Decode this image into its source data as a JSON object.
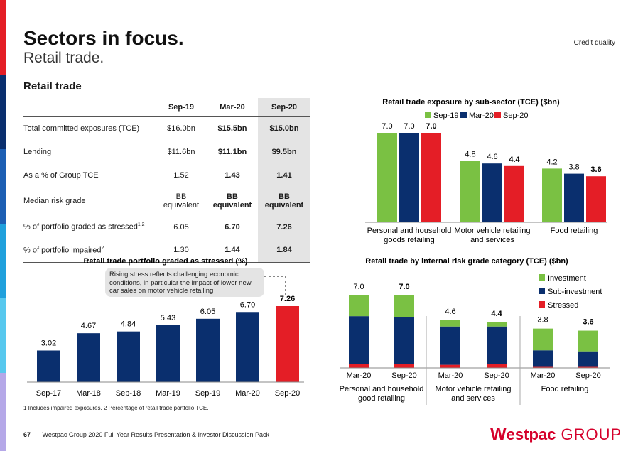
{
  "header": {
    "title": "Sectors in focus.",
    "subtitle": "Retail trade.",
    "tag": "Credit quality"
  },
  "section_title": "Retail trade",
  "table": {
    "columns": [
      "Sep-19",
      "Mar-20",
      "Sep-20"
    ],
    "rows": [
      {
        "label": "Total committed exposures (TCE)",
        "values": [
          "$16.0bn",
          "$15.5bn",
          "$15.0bn"
        ]
      },
      {
        "label": "Lending",
        "values": [
          "$11.6bn",
          "$11.1bn",
          "$9.5bn"
        ]
      },
      {
        "label": "As a % of Group TCE",
        "values": [
          "1.52",
          "1.43",
          "1.41"
        ]
      },
      {
        "label": "Median risk grade",
        "values": [
          "BB",
          "BB",
          "BB"
        ],
        "sub": "equivalent"
      },
      {
        "label": "% of portfolio graded as stressed",
        "sup": "1,2",
        "values": [
          "6.05",
          "6.70",
          "7.26"
        ]
      },
      {
        "label": "% of portfolio impaired",
        "sup": "2",
        "values": [
          "1.30",
          "1.44",
          "1.84"
        ]
      }
    ]
  },
  "colors": {
    "green": "#7ac143",
    "navy": "#0a2f6e",
    "red": "#e41e26"
  },
  "note": "Rising stress reflects challenging economic conditions, in particular the impact of lower new car sales on motor vehicle retailing",
  "footnote": "1 Includes impaired exposures.  2 Percentage of retail trade portfolio TCE.",
  "footer": {
    "page": "67",
    "text": "Westpac Group 2020 Full Year Results Presentation & Investor Discussion Pack"
  },
  "logo": {
    "mark": "W",
    "brand": "estpac",
    "group": " GROUP"
  },
  "chart_data": [
    {
      "type": "bar",
      "title": "Retail trade exposure by sub-sector (TCE) ($bn)",
      "categories": [
        "Personal and household goods retailing",
        "Motor vehicle retailing and services",
        "Food retailing"
      ],
      "category_lines": [
        [
          "Personal and household",
          "goods retailing"
        ],
        [
          "Motor vehicle retailing",
          "and services"
        ],
        [
          "Food retailing"
        ]
      ],
      "series": [
        {
          "name": "Sep-19",
          "values": [
            7.0,
            4.8,
            4.2
          ],
          "labels": [
            "7.0",
            "4.8",
            "4.2"
          ]
        },
        {
          "name": "Mar-20",
          "values": [
            7.0,
            4.6,
            3.8
          ],
          "labels": [
            "7.0",
            "4.6",
            "3.8"
          ]
        },
        {
          "name": "Sep-20",
          "values": [
            7.0,
            4.4,
            3.6
          ],
          "labels": [
            "7.0",
            "4.4",
            "3.6"
          ]
        }
      ],
      "ylim": [
        0,
        7.0
      ],
      "legend": "top"
    },
    {
      "type": "bar",
      "title": "Retail trade portfolio graded as stressed (%)",
      "categories": [
        "Sep-17",
        "Mar-18",
        "Sep-18",
        "Mar-19",
        "Sep-19",
        "Mar-20",
        "Sep-20"
      ],
      "values": [
        3.02,
        4.67,
        4.84,
        5.43,
        6.05,
        6.7,
        7.26
      ],
      "labels": [
        "3.02",
        "4.67",
        "4.84",
        "5.43",
        "6.05",
        "6.70",
        "7.26"
      ],
      "ylim": [
        0,
        7.26
      ]
    },
    {
      "type": "bar",
      "stacked": true,
      "title": "Retail trade by internal risk grade category (TCE) ($bn)",
      "x": [
        "Mar-20",
        "Sep-20",
        "Mar-20",
        "Sep-20",
        "Mar-20",
        "Sep-20"
      ],
      "groups": [
        [
          "Personal and household",
          "good retailing"
        ],
        [
          "Motor vehicle retailing",
          "and services"
        ],
        [
          "Food retailing"
        ]
      ],
      "totals": [
        "7.0",
        "7.0",
        "4.6",
        "4.4",
        "3.8",
        "3.6"
      ],
      "series": [
        {
          "name": "Stressed",
          "values": [
            0.4,
            0.4,
            0.3,
            0.4,
            0.1,
            0.1
          ]
        },
        {
          "name": "Sub-investment",
          "values": [
            4.6,
            4.5,
            3.7,
            3.6,
            1.6,
            1.5
          ]
        },
        {
          "name": "Investment",
          "values": [
            2.0,
            2.1,
            0.6,
            0.4,
            2.1,
            2.0
          ]
        }
      ],
      "ylim": [
        0,
        7.0
      ],
      "legend": "right"
    }
  ]
}
